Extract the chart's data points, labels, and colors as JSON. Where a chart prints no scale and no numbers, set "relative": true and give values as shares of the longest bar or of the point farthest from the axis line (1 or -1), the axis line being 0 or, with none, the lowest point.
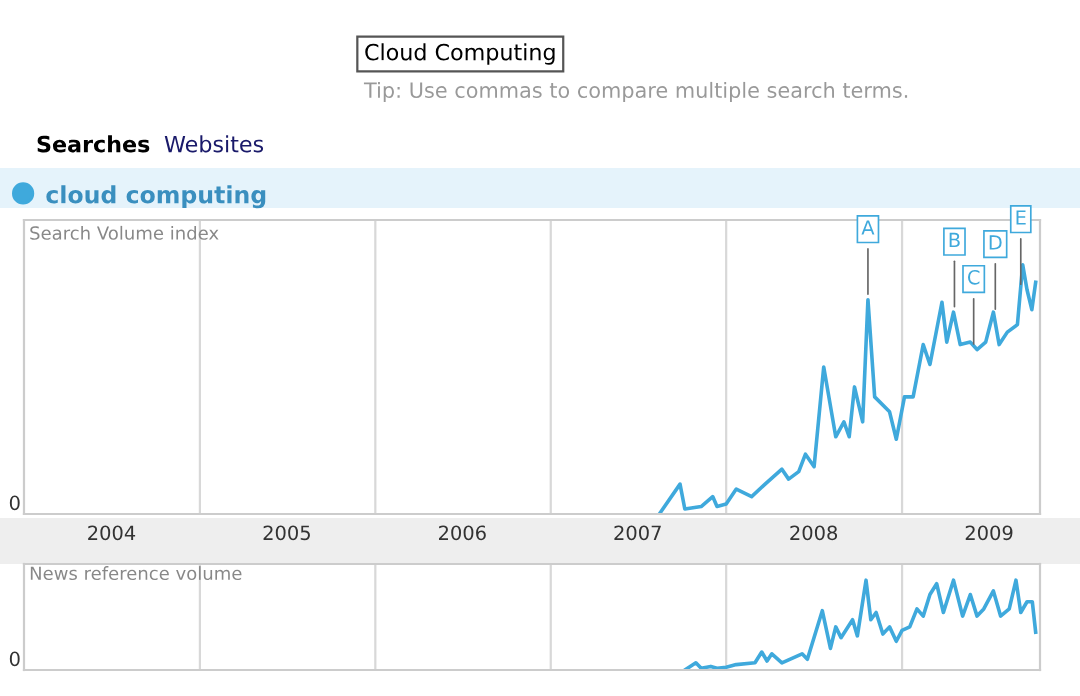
{
  "chart_data": [
    {
      "type": "line",
      "relative": true,
      "ylabel": "Search Volume index",
      "legend": "top left",
      "grid": "x",
      "tick_labels": "x",
      "xlim": [
        "2004-01-01",
        "2009-10-15"
      ],
      "xticks": [
        {
          "value": "2004-07-01",
          "label": "2004"
        },
        {
          "value": "2005-07-01",
          "label": "2005"
        },
        {
          "value": "2006-07-01",
          "label": "2006"
        },
        {
          "value": "2007-07-01",
          "label": "2007"
        },
        {
          "value": "2008-07-01",
          "label": "2008"
        },
        {
          "value": "2009-07-01",
          "label": "2009"
        }
      ],
      "annotations": [
        "Cloud Computing",
        "Tip: Use commas to compare multiple search terms.",
        "Searches",
        "Websites",
        "0",
        {
          "text": "A",
          "x": "2008-10-22",
          "y": 0.86
        },
        {
          "text": "B",
          "x": "2009-04-20",
          "y": 0.81
        },
        {
          "text": "C",
          "x": "2009-05-30",
          "y": 0.66
        },
        {
          "text": "D",
          "x": "2009-07-14",
          "y": 0.8
        },
        {
          "text": "E",
          "x": "2009-09-05",
          "y": 0.9
        }
      ],
      "series": [
        {
          "name": "cloud computing",
          "color": "#3fa9dc",
          "x": [
            "2007-08-15",
            "2007-09-27",
            "2007-10-07",
            "2007-11-10",
            "2007-12-04",
            "2007-12-13",
            "2008-01-01",
            "2008-01-22",
            "2008-02-23",
            "2008-03-22",
            "2008-04-26",
            "2008-05-10",
            "2008-05-31",
            "2008-06-14",
            "2008-07-02",
            "2008-07-22",
            "2008-08-16",
            "2008-09-02",
            "2008-09-13",
            "2008-09-24",
            "2008-10-11",
            "2008-10-22",
            "2008-11-05",
            "2008-12-06",
            "2008-12-20",
            "2009-01-06",
            "2009-01-24",
            "2009-02-14",
            "2009-02-28",
            "2009-03-25",
            "2009-04-04",
            "2009-04-18",
            "2009-05-02",
            "2009-05-23",
            "2009-06-06",
            "2009-06-24",
            "2009-07-10",
            "2009-07-22",
            "2009-08-08",
            "2009-08-29",
            "2009-09-09",
            "2009-09-18",
            "2009-09-28",
            "2009-10-06"
          ],
          "values": [
            0,
            0.12,
            0.02,
            0.03,
            0.07,
            0.03,
            0.04,
            0.1,
            0.07,
            0.12,
            0.18,
            0.14,
            0.17,
            0.24,
            0.19,
            0.59,
            0.31,
            0.37,
            0.31,
            0.51,
            0.37,
            0.86,
            0.47,
            0.41,
            0.3,
            0.47,
            0.47,
            0.68,
            0.6,
            0.85,
            0.69,
            0.81,
            0.68,
            0.69,
            0.66,
            0.69,
            0.81,
            0.68,
            0.73,
            0.76,
            1.0,
            0.9,
            0.82,
            0.93
          ]
        }
      ]
    },
    {
      "type": "line",
      "relative": true,
      "ylabel": "News reference volume",
      "grid": "x",
      "tick_labels": false,
      "xlim": [
        "2004-01-01",
        "2009-10-15"
      ],
      "annotations": [
        "0"
      ],
      "series": [
        {
          "color": "#3fa9dc",
          "x": [
            "2007-10-07",
            "2007-10-30",
            "2007-11-10",
            "2007-11-30",
            "2007-12-13",
            "2008-01-01",
            "2008-01-22",
            "2008-03-01",
            "2008-03-15",
            "2008-03-26",
            "2008-04-05",
            "2008-04-26",
            "2008-06-07",
            "2008-06-18",
            "2008-07-19",
            "2008-08-05",
            "2008-08-16",
            "2008-08-27",
            "2008-09-20",
            "2008-09-30",
            "2008-10-18",
            "2008-10-28",
            "2008-11-08",
            "2008-11-22",
            "2008-12-06",
            "2008-12-20",
            "2009-01-01",
            "2009-01-17",
            "2009-02-01",
            "2009-02-14",
            "2009-02-28",
            "2009-03-14",
            "2009-03-28",
            "2009-04-18",
            "2009-05-07",
            "2009-05-23",
            "2009-06-06",
            "2009-06-20",
            "2009-07-10",
            "2009-07-25",
            "2009-08-12",
            "2009-08-26",
            "2009-09-05",
            "2009-09-18",
            "2009-09-29",
            "2009-10-06"
          ],
          "values": [
            0,
            0.08,
            0.02,
            0.04,
            0.02,
            0.03,
            0.06,
            0.08,
            0.2,
            0.1,
            0.18,
            0.08,
            0.18,
            0.12,
            0.66,
            0.24,
            0.48,
            0.36,
            0.56,
            0.38,
            1.0,
            0.56,
            0.64,
            0.4,
            0.48,
            0.32,
            0.44,
            0.48,
            0.68,
            0.6,
            0.84,
            0.96,
            0.64,
            1.0,
            0.6,
            0.84,
            0.6,
            0.68,
            0.88,
            0.6,
            0.68,
            1.0,
            0.64,
            0.76,
            0.76,
            0.42
          ]
        }
      ]
    }
  ]
}
